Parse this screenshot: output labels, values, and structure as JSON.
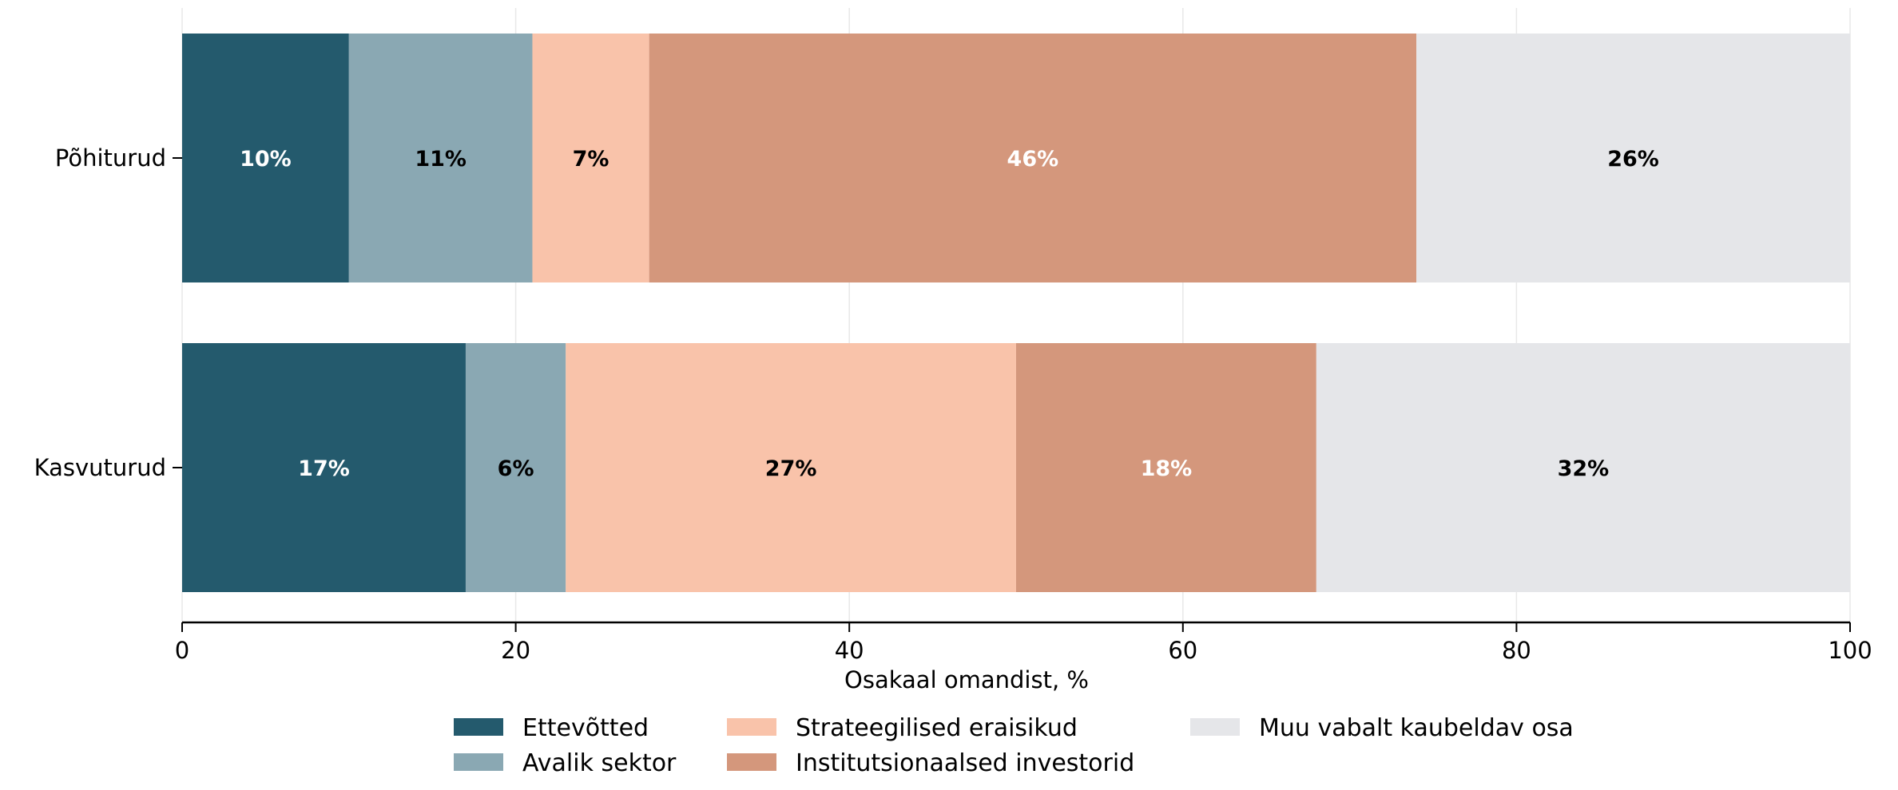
{
  "chart_data": {
    "type": "bar",
    "orientation": "horizontal",
    "stacked": true,
    "categories": [
      "Põhiturud",
      "Kasvuturud"
    ],
    "series": [
      {
        "name": "Ettevõtted",
        "color": "#245a6d",
        "label_color": "#ffffff",
        "values": [
          10,
          17
        ],
        "labels": [
          "10%",
          "17%"
        ]
      },
      {
        "name": "Avalik sektor",
        "color": "#8aa8b3",
        "label_color": "#000000",
        "values": [
          11,
          6
        ],
        "labels": [
          "11%",
          "6%"
        ]
      },
      {
        "name": "Strateegilised eraisikud",
        "color": "#f9c3aa",
        "label_color": "#000000",
        "values": [
          7,
          27
        ],
        "labels": [
          "7%",
          "27%"
        ]
      },
      {
        "name": "Institutsionaalsed investorid",
        "color": "#d4977c",
        "label_color": "#ffffff",
        "values": [
          46,
          18
        ],
        "labels": [
          "46%",
          "18%"
        ]
      },
      {
        "name": "Muu vabalt kaubeldav osa",
        "color": "#e5e6e9",
        "label_color": "#000000",
        "values": [
          26,
          32
        ],
        "labels": [
          "26%",
          "32%"
        ]
      }
    ],
    "xlabel": "Osakaal omandist, %",
    "xlim": [
      0,
      100
    ],
    "xticks": [
      0,
      20,
      40,
      60,
      80,
      100
    ],
    "xtick_labels": [
      "0",
      "20",
      "40",
      "60",
      "80",
      "100"
    ],
    "grid": "vertical",
    "legend_position": "bottom-center"
  }
}
